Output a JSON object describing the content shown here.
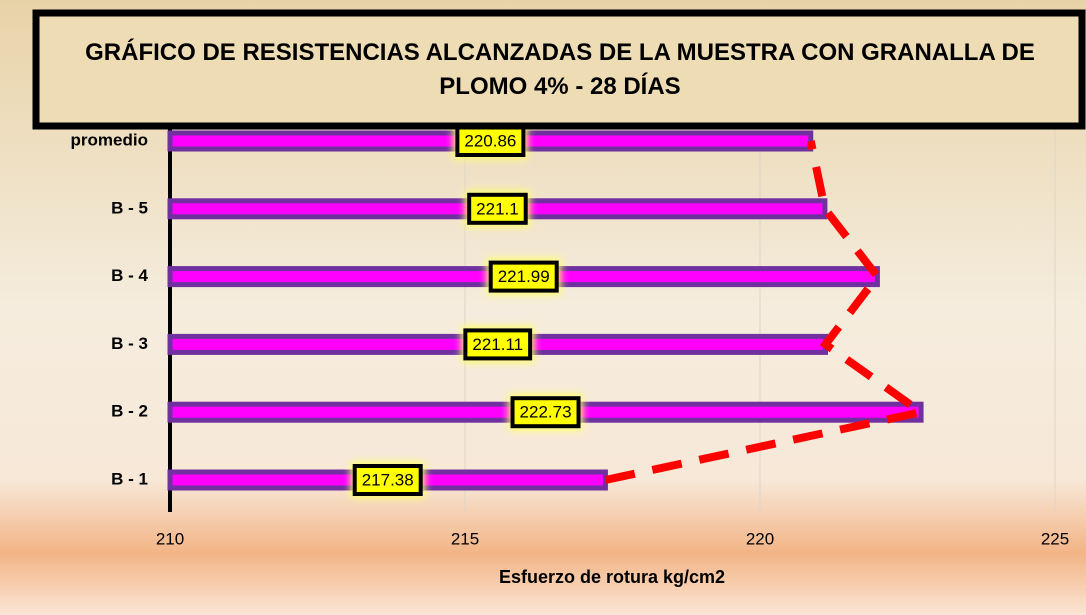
{
  "chart_data": {
    "type": "bar",
    "orientation": "horizontal",
    "title": "GRÁFICO DE RESISTENCIAS ALCANZADAS DE LA MUESTRA CON GRANALLA DE PLOMO 4% - 28 DÍAS",
    "x_label": "Esfuerzo de rotura kg/cm2",
    "categories": [
      "B - 1",
      "B - 2",
      "B - 3",
      "B - 4",
      "B - 5",
      "promedio"
    ],
    "values": [
      217.38,
      222.73,
      221.11,
      221.99,
      221.1,
      220.86
    ],
    "color": "#ff00ff",
    "edge_color": "#7030a0",
    "line_color": "#ff0000",
    "xlim": [
      210,
      225
    ],
    "xticks": [
      210,
      215,
      220,
      225
    ],
    "grid": true
  }
}
